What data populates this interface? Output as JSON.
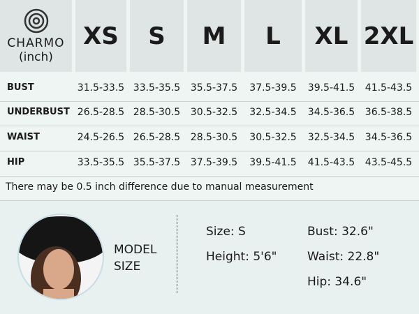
{
  "header": {
    "brand": "CHARMO",
    "unit": "(inch)",
    "sizes": [
      "XS",
      "S",
      "M",
      "L",
      "XL",
      "2XL"
    ]
  },
  "table": {
    "rows": [
      {
        "label": "BUST",
        "values": [
          "31.5-33.5",
          "33.5-35.5",
          "35.5-37.5",
          "37.5-39.5",
          "39.5-41.5",
          "41.5-43.5"
        ]
      },
      {
        "label": "UNDERBUST",
        "values": [
          "26.5-28.5",
          "28.5-30.5",
          "30.5-32.5",
          "32.5-34.5",
          "34.5-36.5",
          "36.5-38.5"
        ]
      },
      {
        "label": "WAIST",
        "values": [
          "24.5-26.5",
          "26.5-28.5",
          "28.5-30.5",
          "30.5-32.5",
          "32.5-34.5",
          "34.5-36.5"
        ]
      },
      {
        "label": "HIP",
        "values": [
          "33.5-35.5",
          "35.5-37.5",
          "37.5-39.5",
          "39.5-41.5",
          "41.5-43.5",
          "43.5-45.5"
        ]
      }
    ]
  },
  "note": "There may be 0.5 inch difference due to manual measurement",
  "model": {
    "label": [
      "MODEL",
      "SIZE"
    ],
    "stats": [
      "Size: S",
      "Height: 5'6\"",
      "Bust: 32.6\"",
      "Waist: 22.8\"",
      "Hip: 34.6\""
    ]
  }
}
